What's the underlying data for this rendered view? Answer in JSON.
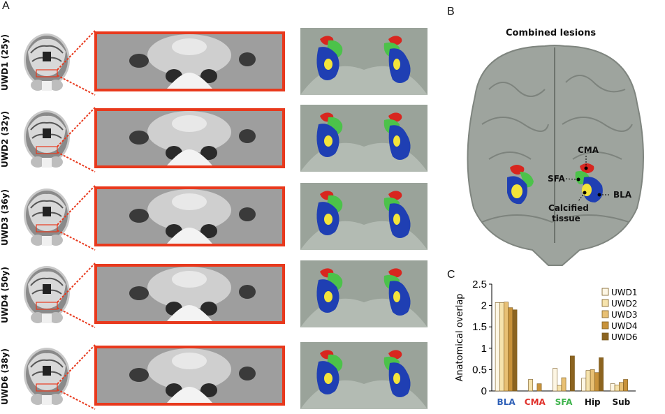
{
  "panels": {
    "a": "A",
    "b": "B",
    "c": "C"
  },
  "subjects": [
    {
      "label": "UWD1 (25y)"
    },
    {
      "label": "UWD2 (32y)"
    },
    {
      "label": "UWD3 (36y)"
    },
    {
      "label": "UWD4 (50y)"
    },
    {
      "label": "UWD6 (38y)"
    }
  ],
  "panel_b": {
    "title": "Combined lesions",
    "labels": {
      "cma": "CMA",
      "sfa": "SFA",
      "bla": "BLA",
      "calc1": "Calcified",
      "calc2": "tissue"
    }
  },
  "colors": {
    "red": "#d8261f",
    "green": "#4cc24a",
    "blue": "#1f3fb3",
    "yellow": "#f4e43a",
    "accent": "#e8391d"
  },
  "chart_data": {
    "type": "bar",
    "categories": [
      "BLA",
      "CMA",
      "SFA",
      "Hip",
      "Sub"
    ],
    "category_colors": [
      "#2e5fb7",
      "#e0302a",
      "#3cb24a",
      "#111111",
      "#111111"
    ],
    "ylabel": "Anatomical overlap",
    "ylim": [
      0,
      2.5
    ],
    "yticks": [
      "0",
      "0.5",
      "1",
      "1.5",
      "2",
      "2.5"
    ],
    "series": [
      {
        "name": "UWD1",
        "color": "#fdf6e4",
        "values": [
          2.07,
          0.0,
          0.53,
          0.3,
          0.17
        ]
      },
      {
        "name": "UWD2",
        "color": "#f6e3ad",
        "values": [
          2.07,
          0.27,
          0.13,
          0.48,
          0.14
        ]
      },
      {
        "name": "UWD3",
        "color": "#e8c074",
        "values": [
          2.08,
          0.0,
          0.31,
          0.5,
          0.2
        ]
      },
      {
        "name": "UWD4",
        "color": "#c8923a",
        "values": [
          1.95,
          0.17,
          0.0,
          0.43,
          0.27
        ]
      },
      {
        "name": "UWD6",
        "color": "#8c6420",
        "values": [
          1.9,
          0.0,
          0.82,
          0.78,
          0.0
        ]
      }
    ],
    "legend": "top-right"
  }
}
